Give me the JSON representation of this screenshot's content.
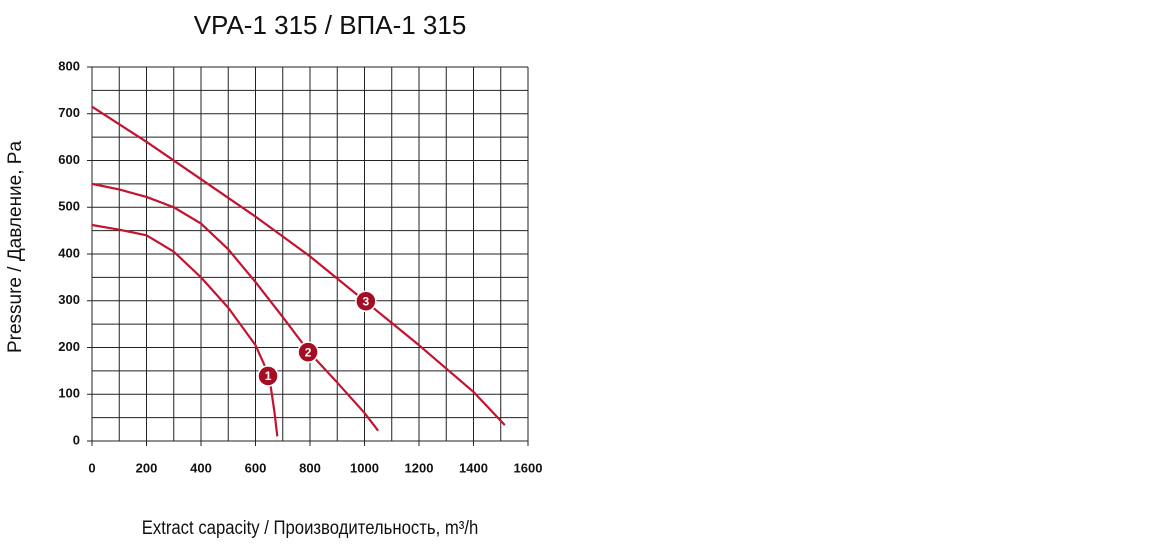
{
  "chart_data": {
    "type": "line",
    "title": "VPA-1 315 / ВПА-1 315",
    "x_label": "Extract capacity / Производительность, m³/h",
    "y_label": "Pressure / Давление, Pa",
    "xlim": [
      0,
      1600
    ],
    "xticks": [
      0,
      200,
      400,
      600,
      800,
      1000,
      1200,
      1400,
      1600
    ],
    "ylim": [
      0,
      800
    ],
    "yticks": [
      0,
      100,
      200,
      300,
      400,
      500,
      600,
      700,
      800
    ],
    "x_grid_step": 100,
    "y_grid_step": 50,
    "grid": true,
    "series": [
      {
        "color": "#c4122f",
        "x": [
          0,
          100,
          200,
          300,
          400,
          500,
          600,
          650,
          670,
          680
        ],
        "values": [
          462,
          452,
          440,
          405,
          350,
          285,
          205,
          140,
          60,
          10
        ],
        "marker": {
          "x": 646,
          "y": 139,
          "label": "1"
        }
      },
      {
        "color": "#c4122f",
        "x": [
          0,
          100,
          200,
          300,
          400,
          500,
          600,
          700,
          800,
          900,
          1000,
          1050
        ],
        "values": [
          550,
          538,
          522,
          500,
          465,
          410,
          340,
          265,
          188,
          125,
          60,
          22
        ],
        "marker": {
          "x": 793,
          "y": 190,
          "label": "2"
        }
      },
      {
        "color": "#c4122f",
        "x": [
          0,
          200,
          400,
          600,
          800,
          1000,
          1200,
          1400,
          1515
        ],
        "values": [
          715,
          640,
          560,
          480,
          395,
          300,
          205,
          105,
          34
        ],
        "marker": {
          "x": 1005,
          "y": 299,
          "label": "3"
        }
      }
    ]
  }
}
